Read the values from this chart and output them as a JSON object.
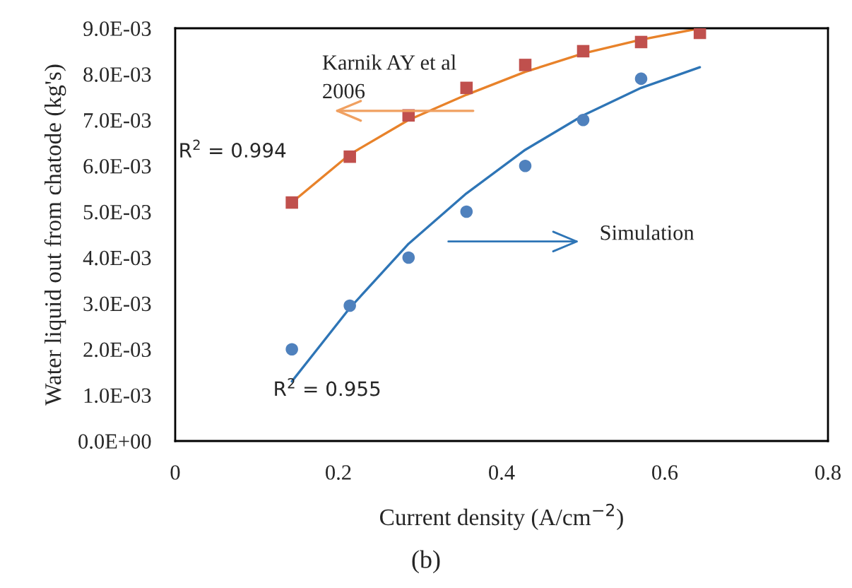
{
  "chart_data": {
    "type": "scatter",
    "xlabel": "Current density (A/cm$^{−2}$)",
    "ylabel": "Water liquid out from chatode (kg's)",
    "xlim": [
      0,
      0.8
    ],
    "xticks": [
      {
        "value": 0,
        "label": "0"
      },
      0.2,
      0.4,
      0.6,
      0.8
    ],
    "ylim": [
      0,
      0.009
    ],
    "yticks": [
      {
        "value": 0,
        "label": "0.0E+00"
      },
      {
        "value": 0.001,
        "label": "1.0E-03"
      },
      {
        "value": 0.002,
        "label": "2.0E-03"
      },
      {
        "value": 0.003,
        "label": "3.0E-03"
      },
      {
        "value": 0.004,
        "label": "4.0E-03"
      },
      {
        "value": 0.005,
        "label": "5.0E-03"
      },
      {
        "value": 0.006,
        "label": "6.0E-03"
      },
      {
        "value": 0.007,
        "label": "7.0E-03"
      },
      {
        "value": 0.008,
        "label": "8.0E-03"
      },
      {
        "value": 0.009,
        "label": "9.0E-03"
      }
    ],
    "grid": false,
    "legend": false,
    "series": [
      {
        "type": "line",
        "color": "#e8822a",
        "marker": "none",
        "x": [
          0.143,
          0.214,
          0.286,
          0.357,
          0.429,
          0.5,
          0.571,
          0.643
        ],
        "values": [
          0.0052,
          0.00625,
          0.007,
          0.00755,
          0.00805,
          0.00845,
          0.00875,
          0.009
        ]
      },
      {
        "type": "line",
        "color": "#2e75b6",
        "marker": "none",
        "x": [
          0.143,
          0.214,
          0.286,
          0.357,
          0.429,
          0.5,
          0.571,
          0.643
        ],
        "values": [
          0.0013,
          0.0029,
          0.0043,
          0.0054,
          0.00635,
          0.0071,
          0.0077,
          0.00815
        ]
      },
      {
        "color": "#c0504d",
        "marker": "square",
        "x": [
          0.143,
          0.214,
          0.286,
          0.357,
          0.429,
          0.5,
          0.571,
          0.643
        ],
        "values": [
          0.0052,
          0.0062,
          0.0071,
          0.0077,
          0.0082,
          0.0085,
          0.0087,
          0.0089
        ]
      },
      {
        "color": "#4f81bd",
        "marker": "circle",
        "x": [
          0.143,
          0.214,
          0.286,
          0.357,
          0.429,
          0.5,
          0.571
        ],
        "values": [
          0.002,
          0.00295,
          0.004,
          0.005,
          0.006,
          0.007,
          0.0079
        ]
      }
    ],
    "annotations": [
      "Karnik AY et al\n2006",
      "Simulation",
      "R$^{2}$ = 0.994",
      "R$^{2}$ = 0.955",
      "(b)"
    ]
  }
}
